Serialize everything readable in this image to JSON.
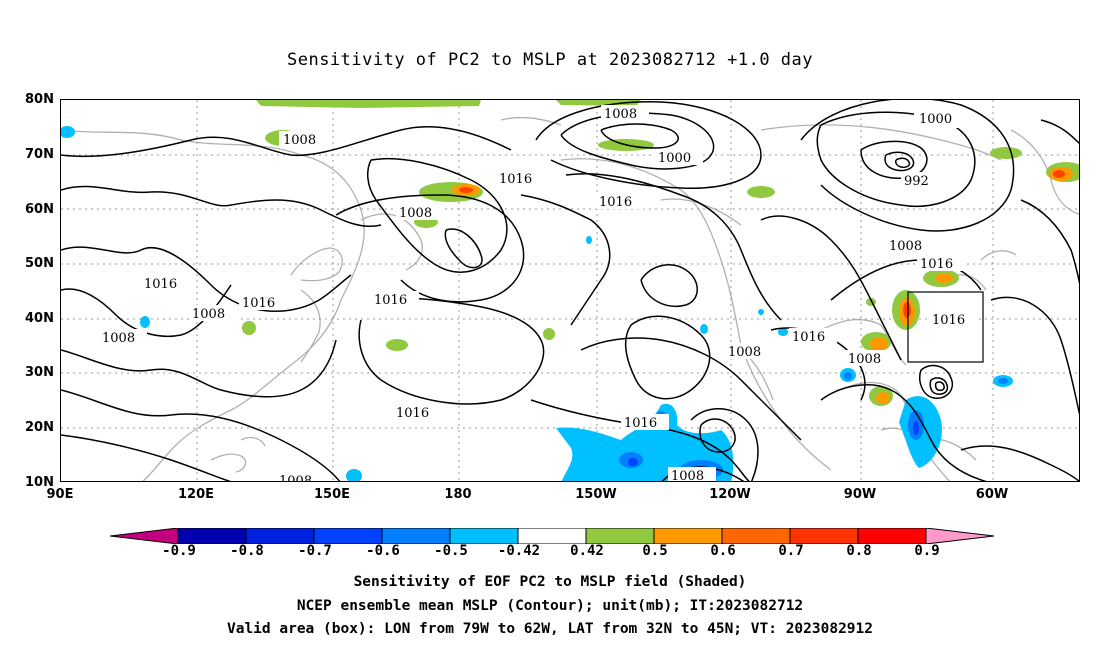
{
  "title": "Sensitivity of PC2 to MSLP at 2023082712 +1.0 day",
  "map": {
    "lat_labels": [
      "80N",
      "70N",
      "60N",
      "50N",
      "40N",
      "30N",
      "20N",
      "10N"
    ],
    "lon_labels": [
      "90E",
      "120E",
      "150E",
      "180",
      "150W",
      "120W",
      "90W",
      "60W"
    ],
    "contour_labels": [
      "1008",
      "1008",
      "1000",
      "1016",
      "1016",
      "1008",
      "1016",
      "1016",
      "1016",
      "1008",
      "1008",
      "1016",
      "1008",
      "1008",
      "1016",
      "1016",
      "1000",
      "992",
      "1008",
      "1016",
      "1016",
      "1008"
    ],
    "valid_box": {
      "lon_from": "79W",
      "lon_to": "62W",
      "lat_from": "32N",
      "lat_to": "45N"
    },
    "grid": "dotted"
  },
  "colorbar": {
    "labels": [
      "-0.9",
      "-0.8",
      "-0.7",
      "-0.6",
      "-0.5",
      "-0.42",
      "0.42",
      "0.5",
      "0.6",
      "0.7",
      "0.8",
      "0.9"
    ],
    "colors": [
      "#c40080",
      "#0000b0",
      "#0020e0",
      "#0040ff",
      "#0080ff",
      "#00c0ff",
      "#ffffff",
      "#90c840",
      "#ff9900",
      "#ff6600",
      "#ff3300",
      "#ff0000",
      "#ff99cc"
    ]
  },
  "caption": {
    "line1": "Sensitivity of EOF PC2 to MSLP field (Shaded)",
    "line2": "NCEP ensemble mean MSLP (Contour); unit(mb); IT:2023082712",
    "line3": "Valid area (box): LON from 79W to 62W, LAT from 32N to 45N; VT: 2023082912"
  }
}
